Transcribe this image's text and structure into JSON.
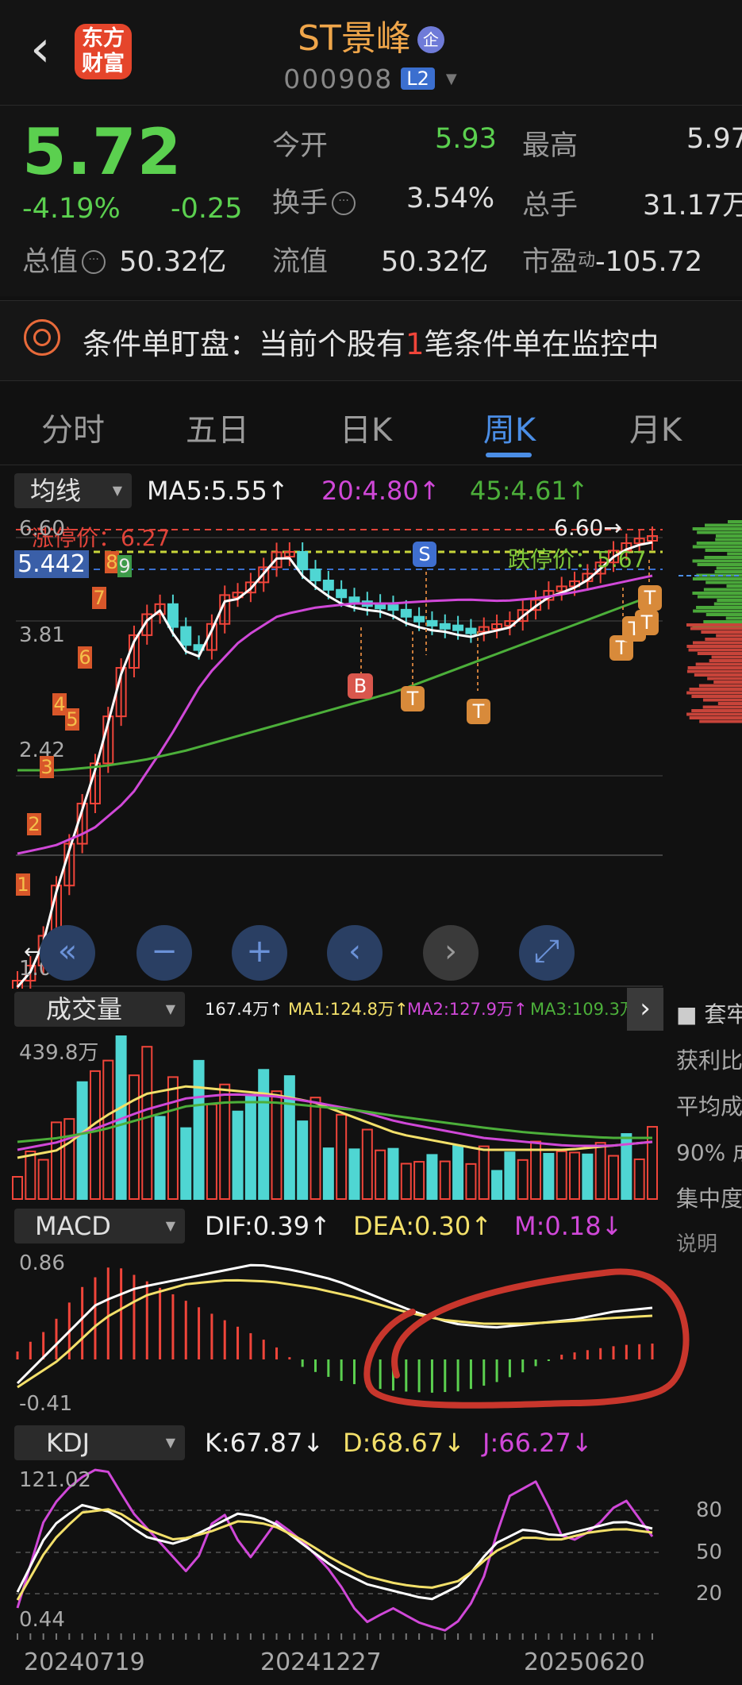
{
  "header": {
    "back_label": "‹",
    "logo_line1": "东方",
    "logo_line2": "财富",
    "stock_name": "ST景峰",
    "cert_badge": "企",
    "stock_code": "000908",
    "level_badge": "L2"
  },
  "quote": {
    "price": "5.72",
    "change_pct": "-4.19%",
    "change": "-0.25",
    "total_value_label": "总值",
    "total_value": "50.32亿",
    "open_label": "今开",
    "open": "5.93",
    "turnover_label": "换手",
    "turnover": "3.54%",
    "float_value_label": "流值",
    "float_value": "50.32亿",
    "high_label": "最高",
    "high": "5.97",
    "total_hands_label": "总手",
    "total_hands": "31.17万",
    "pe_label": "市盈",
    "pe_sup": "动",
    "pe": "-105.72"
  },
  "condition": {
    "prefix": "条件单盯盘：当前个股有",
    "count": "1",
    "suffix": "笔条件单在监控中"
  },
  "tabs": [
    "分时",
    "五日",
    "日K",
    "周K",
    "月K"
  ],
  "active_tab": "周K",
  "ma_panel": {
    "selector": "均线",
    "ma5": "MA5:5.55↑",
    "ma20": "20:4.80↑",
    "ma45": "45:4.61↑"
  },
  "colors": {
    "up": "#f0453a",
    "down": "#4fd6d3",
    "ma5": "#ffffff",
    "ma20": "#d048d8",
    "ma45": "#4caf3a",
    "accent": "#4b8ee6"
  },
  "kline": {
    "limit_up_label": "涨停价：6.27",
    "limit_down_label": "跌停价：5.67",
    "high_marker": "6.60→",
    "price_tag": "5.442",
    "y_labels": [
      "6.60",
      "3.81",
      "2.42",
      "1.02"
    ],
    "low_marker": "←1.12",
    "count_markers": [
      "1",
      "2",
      "3",
      "4",
      "5",
      "6",
      "7",
      "8",
      "9"
    ],
    "trade_markers": [
      "S",
      "B",
      "T",
      "T",
      "T",
      "T",
      "T",
      "T"
    ]
  },
  "controls": [
    "«",
    "−",
    "+",
    "‹",
    "›",
    "⤢"
  ],
  "volume": {
    "selector": "成交量",
    "current": "167.4万↑",
    "ma1": "MA1:124.8万↑",
    "ma2": "MA2:127.9万↑",
    "ma3": "MA3:109.3万↑",
    "max_label": "439.8万"
  },
  "side_panel": {
    "title": "■ 套牢",
    "lines": [
      "获利比",
      "平均成",
      "90% 成",
      "集中度"
    ],
    "explain": "说明"
  },
  "macd": {
    "selector": "MACD",
    "dif": "DIF:0.39↑",
    "dea": "DEA:0.30↑",
    "m": "M:0.18↓",
    "max_label": "0.86",
    "min_label": "-0.41"
  },
  "kdj": {
    "selector": "KDJ",
    "k": "K:67.87↓",
    "d": "D:68.67↓",
    "j": "J:66.27↓",
    "max_label": "121.02",
    "min_label": "0.44",
    "levels": [
      "80",
      "50",
      "20"
    ]
  },
  "dates": [
    "20240719",
    "20241227",
    "20250620"
  ]
}
